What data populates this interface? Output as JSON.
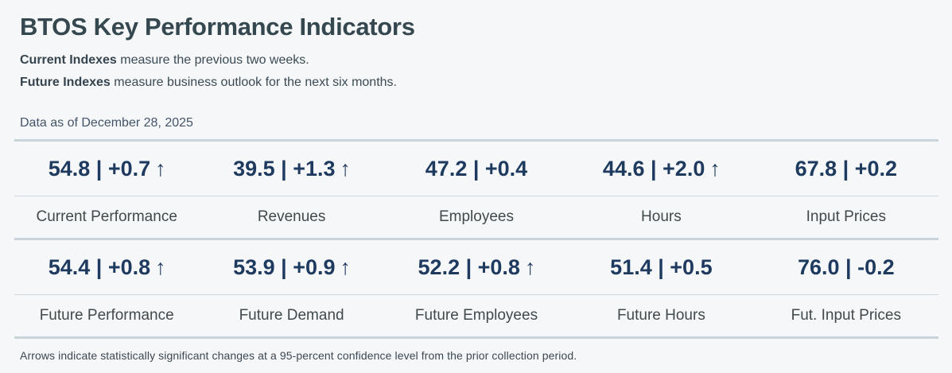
{
  "header": {
    "title": "BTOS Key Performance Indicators",
    "subtitle_current_bold": "Current Indexes",
    "subtitle_current_rest": " measure the previous two weeks.",
    "subtitle_future_bold": "Future Indexes",
    "subtitle_future_rest": " measure business outlook for the next six months.",
    "data_as_of": "Data as of December 28, 2025"
  },
  "footnote": "Arrows indicate statistically significant changes at a 95-percent confidence level from the prior collection period.",
  "icons": {
    "significant_up_arrow": "↑"
  },
  "colors": {
    "background": "#f5f7f8",
    "title_text": "#35474f",
    "body_text": "#3b4a54",
    "value_text": "#1f3a5f",
    "label_text": "#41494d",
    "divider": "#c9d3da"
  },
  "chart_data": {
    "type": "table",
    "title": "BTOS Key Performance Indicators",
    "as_of": "December 28, 2025",
    "value_format": "index | change, arrow = statistically significant at 95% confidence",
    "groups": [
      {
        "name": "Current Indexes",
        "kpis": [
          {
            "label": "Current Performance",
            "index": 54.8,
            "change": 0.7,
            "change_display": "+0.7",
            "significant": true
          },
          {
            "label": "Revenues",
            "index": 39.5,
            "change": 1.3,
            "change_display": "+1.3",
            "significant": true
          },
          {
            "label": "Employees",
            "index": 47.2,
            "change": 0.4,
            "change_display": "+0.4",
            "significant": false
          },
          {
            "label": "Hours",
            "index": 44.6,
            "change": 2.0,
            "change_display": "+2.0",
            "significant": true
          },
          {
            "label": "Input Prices",
            "index": 67.8,
            "change": 0.2,
            "change_display": "+0.2",
            "significant": false
          }
        ]
      },
      {
        "name": "Future Indexes",
        "kpis": [
          {
            "label": "Future Performance",
            "index": 54.4,
            "change": 0.8,
            "change_display": "+0.8",
            "significant": true
          },
          {
            "label": "Future Demand",
            "index": 53.9,
            "change": 0.9,
            "change_display": "+0.9",
            "significant": true
          },
          {
            "label": "Future Employees",
            "index": 52.2,
            "change": 0.8,
            "change_display": "+0.8",
            "significant": true
          },
          {
            "label": "Future Hours",
            "index": 51.4,
            "change": 0.5,
            "change_display": "+0.5",
            "significant": false
          },
          {
            "label": "Fut. Input Prices",
            "index": 76.0,
            "change": -0.2,
            "change_display": "-0.2",
            "significant": false
          }
        ]
      }
    ]
  }
}
